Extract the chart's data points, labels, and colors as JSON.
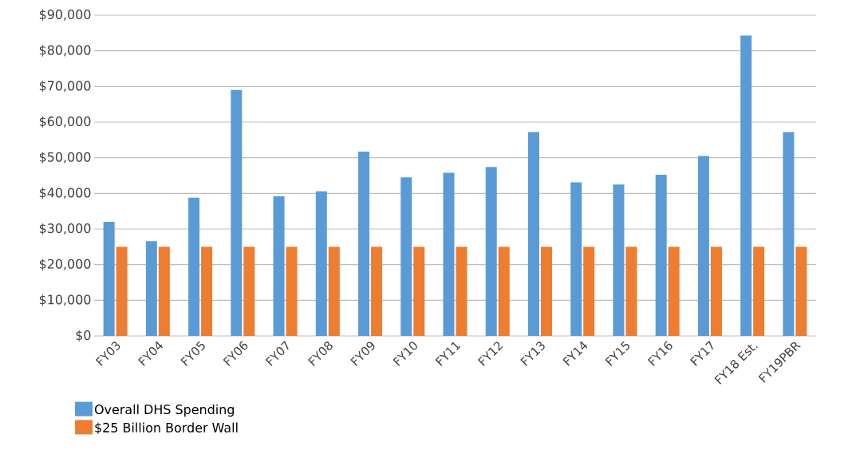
{
  "chart_data": {
    "type": "bar",
    "categories": [
      "FY03",
      "FY04",
      "FY05",
      "FY06",
      "FY07",
      "FY08",
      "FY09",
      "FY10",
      "FY11",
      "FY12",
      "FY13",
      "FY14",
      "FY15",
      "FY16",
      "FY17",
      "FY18 Est.",
      "FY19PBR"
    ],
    "series": [
      {
        "name": "Overall DHS Spending",
        "color": "#5b9bd5",
        "values": [
          32000,
          26600,
          38800,
          69000,
          39200,
          40600,
          51700,
          44500,
          45800,
          47400,
          57200,
          43100,
          42500,
          45200,
          50500,
          84300,
          57200
        ]
      },
      {
        "name": "$25 Billion Border Wall",
        "color": "#ed7d31",
        "values": [
          25000,
          25000,
          25000,
          25000,
          25000,
          25000,
          25000,
          25000,
          25000,
          25000,
          25000,
          25000,
          25000,
          25000,
          25000,
          25000,
          25000
        ]
      }
    ],
    "ylim": [
      0,
      90000
    ],
    "yticks": [
      {
        "value": 0,
        "label": "$0"
      },
      {
        "value": 10000,
        "label": "$10,000"
      },
      {
        "value": 20000,
        "label": "$20,000"
      },
      {
        "value": 30000,
        "label": "$30,000"
      },
      {
        "value": 40000,
        "label": "$40,000"
      },
      {
        "value": 50000,
        "label": "$50,000"
      },
      {
        "value": 60000,
        "label": "$60,000"
      },
      {
        "value": 70000,
        "label": "$70,000"
      },
      {
        "value": 80000,
        "label": "$80,000"
      },
      {
        "value": 90000,
        "label": "$90,000"
      }
    ],
    "grid": "y",
    "legend": "bottom left"
  }
}
